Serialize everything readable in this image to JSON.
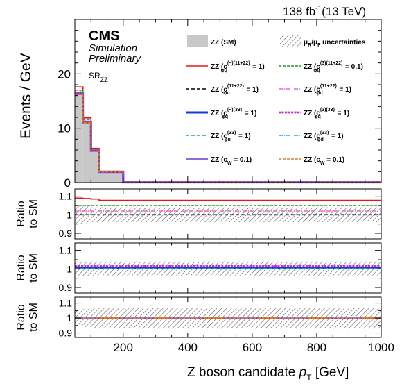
{
  "header": {
    "lumi": "138 fb",
    "lumi_exp": "-1",
    "energy": "(13 TeV)",
    "cms": "CMS",
    "sim": "Simulation",
    "prelim": "Preliminary",
    "region_main": "SR",
    "region_sub": "ZZ"
  },
  "axes": {
    "ylabel_main": "Events / GeV",
    "ylabel_ratio_1": "Ratio",
    "ylabel_ratio_2": "to SM",
    "xlabel_main": "Z boson candidate ",
    "xlabel_var": "p",
    "xlabel_sub": "T",
    "xlabel_unit": " [GeV]"
  },
  "legend": [
    {
      "name": "ZZ (SM)",
      "sym": "fill",
      "color": "#c8c8c8"
    },
    {
      "name": "uncert",
      "sym": "hatch",
      "color": "#555555",
      "mu1": "μ",
      "sub1": "R",
      "slash": "/μ",
      "sub2": "F",
      "tail": " uncertainties"
    },
    {
      "base": "ZZ (c",
      "sub": "φq",
      "sup": "(−)(11+22)",
      "rest": " = 1)",
      "color": "#e8141b",
      "dash": "",
      "width": 1.6
    },
    {
      "base": "ZZ (c",
      "sub": "φq",
      "sup": "(3)(11+22)",
      "rest": " = 0.1)",
      "color": "#1e9e1e",
      "dash": "4,2",
      "width": 1.6
    },
    {
      "base": "ZZ (c",
      "sub": "φu",
      "sup": "(11+22)",
      "rest": " = 1)",
      "color": "#000000",
      "dash": "5,3",
      "width": 1.6
    },
    {
      "base": "ZZ (c",
      "sub": "φd",
      "sup": "(11+22)",
      "rest": " = 1)",
      "color": "#ee66cc",
      "dash": "6,2,1,2",
      "width": 1.4
    },
    {
      "base": "ZZ (c",
      "sub": "φq",
      "sup": "(−)(33)",
      "rest": " = 1)",
      "color": "#1a38d6",
      "dash": "",
      "width": 3
    },
    {
      "base": "ZZ (c",
      "sub": "φq",
      "sup": "(3)(33)",
      "rest": " = 1)",
      "color": "#dd22dd",
      "dash": "3,1.5",
      "width": 2.8
    },
    {
      "base": "ZZ (c",
      "sub": "φu",
      "sup": "(33)",
      "rest": " = 1)",
      "color": "#1aa0a0",
      "dash": "5,3",
      "width": 1.6
    },
    {
      "base": "ZZ (c",
      "sub": "φd",
      "sup": "(33)",
      "rest": " = 1)",
      "color": "#3aa0e0",
      "dash": "6,2,1,2",
      "width": 1.4
    },
    {
      "base": "ZZ (c",
      "sub": "W",
      "sup": "",
      "rest": " = 0.1)",
      "color": "#6a3ac8",
      "dash": "",
      "width": 1.6
    },
    {
      "base": "ZZ (c",
      "sub": "W̃",
      "sup": "",
      "rest": " = 0.1)",
      "color": "#e87a1a",
      "dash": "4,2",
      "width": 1.6
    }
  ],
  "colors": {
    "sm_fill": "#c8c8c8",
    "hatch": "#555555"
  },
  "chart_data": [
    {
      "type": "bar",
      "bin_edges": [
        50,
        75,
        100,
        125,
        200,
        1000
      ],
      "xlim": [
        50,
        1000
      ],
      "ylim": [
        0,
        30
      ],
      "yticks": [
        0,
        10,
        20
      ],
      "xticks": [
        200,
        400,
        600,
        800,
        1000
      ],
      "sm": [
        16.2,
        11.0,
        5.8,
        1.95,
        0.05
      ],
      "series": [
        {
          "idx": 2,
          "values": [
            17.6,
            11.9,
            6.3,
            2.1,
            0.06
          ]
        },
        {
          "idx": 3,
          "values": [
            17.0,
            11.55,
            6.1,
            2.05,
            0.06
          ]
        },
        {
          "idx": 4,
          "values": [
            16.2,
            11.0,
            5.8,
            1.95,
            0.05
          ]
        },
        {
          "idx": 5,
          "values": [
            16.5,
            11.2,
            5.9,
            1.98,
            0.05
          ]
        },
        {
          "idx": 6,
          "values": [
            16.35,
            11.1,
            5.85,
            1.97,
            0.05
          ]
        },
        {
          "idx": 7,
          "values": [
            16.45,
            11.15,
            5.9,
            1.98,
            0.05
          ]
        },
        {
          "idx": 8,
          "values": [
            16.3,
            11.05,
            5.83,
            1.96,
            0.05
          ]
        },
        {
          "idx": 9,
          "values": [
            16.25,
            11.02,
            5.82,
            1.96,
            0.05
          ]
        },
        {
          "idx": 10,
          "values": [
            16.22,
            11.01,
            5.81,
            1.95,
            0.05
          ]
        },
        {
          "idx": 11,
          "values": [
            16.21,
            11.0,
            5.8,
            1.95,
            0.05
          ]
        }
      ]
    },
    {
      "type": "line",
      "ylabel": "Ratio to SM",
      "ylim": [
        0.87,
        1.14
      ],
      "yticks": [
        0.9,
        1,
        1.1
      ],
      "band": [
        [
          0.95,
          1.05
        ],
        [
          0.955,
          1.045
        ],
        [
          0.96,
          1.04
        ],
        [
          0.96,
          1.04
        ],
        [
          0.96,
          1.04
        ]
      ],
      "series": [
        {
          "idx": 2,
          "values": [
            1.09,
            1.088,
            1.085,
            1.078,
            1.078
          ]
        },
        {
          "idx": 3,
          "values": [
            1.05,
            1.05,
            1.05,
            1.05,
            1.05
          ]
        },
        {
          "idx": 5,
          "values": [
            1.02,
            1.02,
            1.02,
            1.02,
            1.02
          ]
        },
        {
          "idx": 4,
          "values": [
            1.0,
            1.0,
            1.0,
            1.0,
            1.0
          ]
        }
      ]
    },
    {
      "type": "line",
      "ylabel": "Ratio to SM",
      "ylim": [
        0.87,
        1.14
      ],
      "yticks": [
        0.9,
        1,
        1.1
      ],
      "band": [
        [
          0.96,
          1.04
        ],
        [
          0.96,
          1.04
        ],
        [
          0.965,
          1.04
        ],
        [
          0.965,
          1.04
        ],
        [
          0.965,
          1.04
        ]
      ],
      "series": [
        {
          "idx": 7,
          "values": [
            1.015,
            1.015,
            1.015,
            1.015,
            1.015
          ]
        },
        {
          "idx": 6,
          "values": [
            1.005,
            1.005,
            1.005,
            1.005,
            1.005
          ]
        },
        {
          "idx": 8,
          "values": [
            1.002,
            1.002,
            1.002,
            1.002,
            1.002
          ]
        },
        {
          "idx": 9,
          "values": [
            1.0,
            1.0,
            1.0,
            1.0,
            1.0
          ]
        }
      ]
    },
    {
      "type": "line",
      "ylabel": "Ratio to SM",
      "ylim": [
        0.87,
        1.14
      ],
      "yticks": [
        0.9,
        1,
        1.1
      ],
      "band": [
        [
          0.95,
          1.05
        ],
        [
          0.94,
          1.06
        ],
        [
          0.93,
          1.07
        ],
        [
          0.93,
          1.07
        ],
        [
          0.93,
          1.07
        ]
      ],
      "series": [
        {
          "idx": 10,
          "values": [
            1.0,
            1.0,
            1.0,
            1.0,
            1.0
          ]
        },
        {
          "idx": 11,
          "values": [
            1.0,
            1.0,
            1.0,
            1.0,
            1.0
          ]
        }
      ]
    }
  ]
}
